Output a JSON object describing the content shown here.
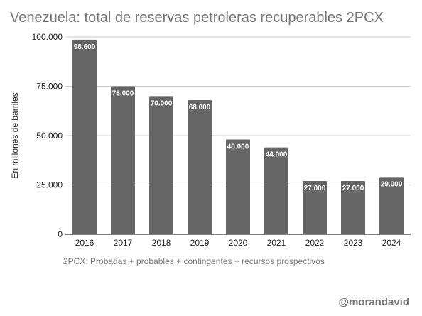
{
  "chart_data": {
    "type": "bar",
    "title": "Venezuela: total de reservas petroleras recuperables 2PCX",
    "xlabel": "",
    "ylabel": "En millones de barriles",
    "categories": [
      "2016",
      "2017",
      "2018",
      "2019",
      "2020",
      "2021",
      "2022",
      "2023",
      "2024"
    ],
    "values": [
      98600,
      75000,
      70000,
      68000,
      48000,
      44000,
      27000,
      27000,
      29000
    ],
    "value_labels": [
      "98.600",
      "75.000",
      "70.000",
      "68.000",
      "48.000",
      "44.000",
      "27.000",
      "27.000",
      "29.000"
    ],
    "ylim": [
      0,
      100000
    ],
    "yticks": [
      0,
      25000,
      50000,
      75000,
      100000
    ],
    "ytick_labels": [
      "0",
      "25.000",
      "50.000",
      "75.000",
      "100.000"
    ],
    "grid": true,
    "bar_color": "#666666"
  },
  "footnote": "2PCX:  Probadas + probables + contingentes + recursos prospectivos",
  "credit": "@morandavid"
}
